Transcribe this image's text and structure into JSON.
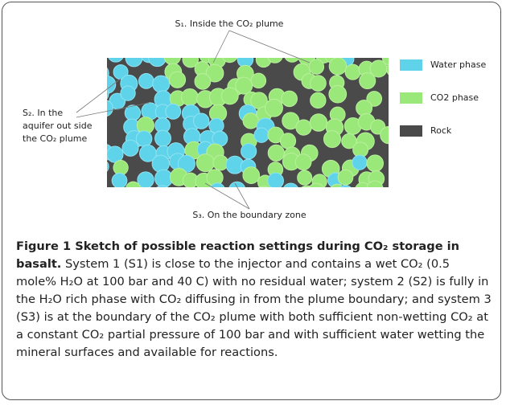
{
  "figure": {
    "labels": {
      "s1": "S₁. Inside the CO₂ plume",
      "s2": [
        "S₂. In the",
        "aquifer out side",
        "the CO₂ plume"
      ],
      "s3": "S₃. On the boundary zone"
    },
    "legend": [
      "Water phase",
      "CO2 phase",
      "Rock"
    ],
    "caption": {
      "title": "Figure 1 Sketch of possible reaction settings during CO₂ storage in basalt.",
      "text": "System 1 (S1) is close to the injector and contains a wet CO₂ (0.5 mole% H₂O at 100 bar and 40 C) with no residual water; system 2 (S2) is fully in the H₂O rich phase with CO₂ diffusing in from the plume boundary; and system 3 (S3) is at the boundary of the CO₂ plume with both sufficient non-wetting CO₂ at a constant CO₂ partial pressure of 100 bar and with sufficient water wetting the mineral surfaces and available for reactions."
    }
  }
}
